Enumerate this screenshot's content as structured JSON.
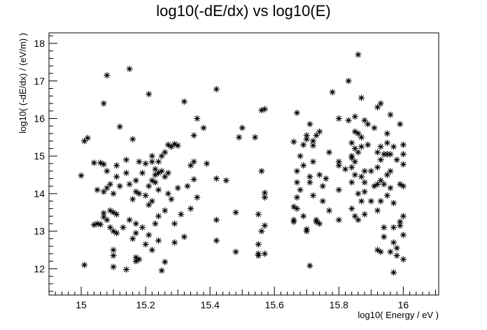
{
  "chart_data": {
    "type": "scatter",
    "title": "log10(-dE/dx) vs log10(E)",
    "xlabel": "log10( Energy / eV )",
    "ylabel": "log10( (-dE/dx) / (eV/m) )",
    "xlim": [
      14.9,
      16.11
    ],
    "ylim": [
      11.3,
      18.28
    ],
    "x_ticks": [
      15,
      15.2,
      15.4,
      15.6,
      15.8,
      16
    ],
    "x_tick_labels": [
      "15",
      "15.2",
      "15.4",
      "15.6",
      "15.8",
      "16"
    ],
    "y_ticks": [
      12,
      13,
      14,
      15,
      16,
      17,
      18
    ],
    "y_tick_labels": [
      "12",
      "13",
      "14",
      "15",
      "16",
      "17",
      "18"
    ],
    "grid": false,
    "marker": "star",
    "color": "#000000",
    "points": [
      [
        15.0,
        14.48
      ],
      [
        15.01,
        12.1
      ],
      [
        15.01,
        15.4
      ],
      [
        15.02,
        15.48
      ],
      [
        15.04,
        14.82
      ],
      [
        15.04,
        13.17
      ],
      [
        15.05,
        13.2
      ],
      [
        15.05,
        14.1
      ],
      [
        15.06,
        14.82
      ],
      [
        15.06,
        13.18
      ],
      [
        15.07,
        14.78
      ],
      [
        15.07,
        14.05
      ],
      [
        15.07,
        13.48
      ],
      [
        15.07,
        13.38
      ],
      [
        15.07,
        16.4
      ],
      [
        15.08,
        17.15
      ],
      [
        15.08,
        14.15
      ],
      [
        15.08,
        14.6
      ],
      [
        15.08,
        13.3
      ],
      [
        15.09,
        13.1
      ],
      [
        15.09,
        14.25
      ],
      [
        15.09,
        13.55
      ],
      [
        15.1,
        12.35
      ],
      [
        15.1,
        12.05
      ],
      [
        15.1,
        13.5
      ],
      [
        15.1,
        14.0
      ],
      [
        15.1,
        13.0
      ],
      [
        15.1,
        12.5
      ],
      [
        15.11,
        14.75
      ],
      [
        15.11,
        14.45
      ],
      [
        15.11,
        13.45
      ],
      [
        15.11,
        12.95
      ],
      [
        15.12,
        15.78
      ],
      [
        15.12,
        14.2
      ],
      [
        15.13,
        13.1
      ],
      [
        15.14,
        11.98
      ],
      [
        15.14,
        14.55
      ],
      [
        15.14,
        14.9
      ],
      [
        15.15,
        17.32
      ],
      [
        15.15,
        13.3
      ],
      [
        15.15,
        14.25
      ],
      [
        15.16,
        13.85
      ],
      [
        15.16,
        12.8
      ],
      [
        15.16,
        15.45
      ],
      [
        15.17,
        12.95
      ],
      [
        15.17,
        12.2
      ],
      [
        15.17,
        12.3
      ],
      [
        15.17,
        14.05
      ],
      [
        15.17,
        13.2
      ],
      [
        15.17,
        14.35
      ],
      [
        15.18,
        12.25
      ],
      [
        15.18,
        14.0
      ],
      [
        15.18,
        14.85
      ],
      [
        15.19,
        13.1
      ],
      [
        15.19,
        14.55
      ],
      [
        15.2,
        12.65
      ],
      [
        15.2,
        13.95
      ],
      [
        15.2,
        14.8
      ],
      [
        15.21,
        16.65
      ],
      [
        15.21,
        14.2
      ],
      [
        15.21,
        13.7
      ],
      [
        15.21,
        12.9
      ],
      [
        15.22,
        14.85
      ],
      [
        15.22,
        14.35
      ],
      [
        15.22,
        12.5
      ],
      [
        15.22,
        15.0
      ],
      [
        15.22,
        13.8
      ],
      [
        15.23,
        14.3
      ],
      [
        15.23,
        14.65
      ],
      [
        15.23,
        13.2
      ],
      [
        15.23,
        14.5
      ],
      [
        15.24,
        14.55
      ],
      [
        15.24,
        14.1
      ],
      [
        15.24,
        13.4
      ],
      [
        15.24,
        14.85
      ],
      [
        15.24,
        12.75
      ],
      [
        15.25,
        14.6
      ],
      [
        15.25,
        15.0
      ],
      [
        15.25,
        11.95
      ],
      [
        15.26,
        14.45
      ],
      [
        15.26,
        15.1
      ],
      [
        15.26,
        12.18
      ],
      [
        15.26,
        13.55
      ],
      [
        15.27,
        15.3
      ],
      [
        15.27,
        14.0
      ],
      [
        15.27,
        14.55
      ],
      [
        15.28,
        15.25
      ],
      [
        15.28,
        13.85
      ],
      [
        15.29,
        15.32
      ],
      [
        15.29,
        13.2
      ],
      [
        15.29,
        12.7
      ],
      [
        15.3,
        14.15
      ],
      [
        15.3,
        15.28
      ],
      [
        15.31,
        13.45
      ],
      [
        15.32,
        12.85
      ],
      [
        15.32,
        16.45
      ],
      [
        15.33,
        14.2
      ],
      [
        15.34,
        13.6
      ],
      [
        15.34,
        14.75
      ],
      [
        15.35,
        14.38
      ],
      [
        15.35,
        15.55
      ],
      [
        15.35,
        14.85
      ],
      [
        15.36,
        16.0
      ],
      [
        15.36,
        13.9
      ],
      [
        15.38,
        15.75
      ],
      [
        15.39,
        14.8
      ],
      [
        15.42,
        16.78
      ],
      [
        15.42,
        14.4
      ],
      [
        15.42,
        13.3
      ],
      [
        15.42,
        12.75
      ],
      [
        15.45,
        14.35
      ],
      [
        15.48,
        13.5
      ],
      [
        15.48,
        12.45
      ],
      [
        15.49,
        15.5
      ],
      [
        15.5,
        15.75
      ],
      [
        15.54,
        15.5
      ],
      [
        15.55,
        13.45
      ],
      [
        15.55,
        12.65
      ],
      [
        15.55,
        12.4
      ],
      [
        15.55,
        12.35
      ],
      [
        15.56,
        14.6
      ],
      [
        15.56,
        13.0
      ],
      [
        15.56,
        16.22
      ],
      [
        15.57,
        16.25
      ],
      [
        15.57,
        14.02
      ],
      [
        15.57,
        13.15
      ],
      [
        15.57,
        12.4
      ],
      [
        15.57,
        13.9
      ],
      [
        15.66,
        15.38
      ],
      [
        15.66,
        13.65
      ],
      [
        15.66,
        13.3
      ],
      [
        15.66,
        13.25
      ],
      [
        15.67,
        16.15
      ],
      [
        15.67,
        14.6
      ],
      [
        15.67,
        13.9
      ],
      [
        15.67,
        14.3
      ],
      [
        15.67,
        13.6
      ],
      [
        15.68,
        14.1
      ],
      [
        15.68,
        15.0
      ],
      [
        15.69,
        15.3
      ],
      [
        15.69,
        13.4
      ],
      [
        15.69,
        14.75
      ],
      [
        15.7,
        15.55
      ],
      [
        15.7,
        13.05
      ],
      [
        15.7,
        13.0
      ],
      [
        15.7,
        15.45
      ],
      [
        15.71,
        12.08
      ],
      [
        15.71,
        15.85
      ],
      [
        15.71,
        14.45
      ],
      [
        15.71,
        14.3
      ],
      [
        15.72,
        15.28
      ],
      [
        15.72,
        14.85
      ],
      [
        15.72,
        13.95
      ],
      [
        15.72,
        15.4
      ],
      [
        15.73,
        15.55
      ],
      [
        15.73,
        13.25
      ],
      [
        15.73,
        13.3
      ],
      [
        15.74,
        15.65
      ],
      [
        15.74,
        14.5
      ],
      [
        15.74,
        13.2
      ],
      [
        15.75,
        14.2
      ],
      [
        15.75,
        13.8
      ],
      [
        15.76,
        14.4
      ],
      [
        15.77,
        13.55
      ],
      [
        15.77,
        15.1
      ],
      [
        15.78,
        16.7
      ],
      [
        15.8,
        16.0
      ],
      [
        15.8,
        14.85
      ],
      [
        15.8,
        14.75
      ],
      [
        15.8,
        14.1
      ],
      [
        15.8,
        13.3
      ],
      [
        15.82,
        14.65
      ],
      [
        15.83,
        17.0
      ],
      [
        15.83,
        15.95
      ],
      [
        15.84,
        15.35
      ],
      [
        15.84,
        15.0
      ],
      [
        15.84,
        14.95
      ],
      [
        15.84,
        14.7
      ],
      [
        15.84,
        14.3
      ],
      [
        15.84,
        13.6
      ],
      [
        15.85,
        16.05
      ],
      [
        15.85,
        15.65
      ],
      [
        15.85,
        15.2
      ],
      [
        15.85,
        14.5
      ],
      [
        15.85,
        14.85
      ],
      [
        15.85,
        13.4
      ],
      [
        15.86,
        17.7
      ],
      [
        15.86,
        15.6
      ],
      [
        15.86,
        15.1
      ],
      [
        15.86,
        14.0
      ],
      [
        15.86,
        13.3
      ],
      [
        15.87,
        16.55
      ],
      [
        15.87,
        15.5
      ],
      [
        15.87,
        15.25
      ],
      [
        15.87,
        14.45
      ],
      [
        15.87,
        13.8
      ],
      [
        15.88,
        15.95
      ],
      [
        15.88,
        14.6
      ],
      [
        15.88,
        14.3
      ],
      [
        15.88,
        14.05
      ],
      [
        15.88,
        13.45
      ],
      [
        15.89,
        15.85
      ],
      [
        15.89,
        15.3
      ],
      [
        15.9,
        14.6
      ],
      [
        15.9,
        13.8
      ],
      [
        15.91,
        15.75
      ],
      [
        15.91,
        14.2
      ],
      [
        15.92,
        16.3
      ],
      [
        15.92,
        15.1
      ],
      [
        15.92,
        14.7
      ],
      [
        15.92,
        14.25
      ],
      [
        15.92,
        13.55
      ],
      [
        15.92,
        12.5
      ],
      [
        15.93,
        16.4
      ],
      [
        15.93,
        15.25
      ],
      [
        15.93,
        14.9
      ],
      [
        15.93,
        14.35
      ],
      [
        15.93,
        13.8
      ],
      [
        15.93,
        12.45
      ],
      [
        15.94,
        15.05
      ],
      [
        15.94,
        14.25
      ],
      [
        15.94,
        13.1
      ],
      [
        15.94,
        12.85
      ],
      [
        15.95,
        15.6
      ],
      [
        15.95,
        15.35
      ],
      [
        15.95,
        15.05
      ],
      [
        15.95,
        14.5
      ],
      [
        15.95,
        13.95
      ],
      [
        15.96,
        14.6
      ],
      [
        15.96,
        12.45
      ],
      [
        15.96,
        16.1
      ],
      [
        15.96,
        15.05
      ],
      [
        15.96,
        14.15
      ],
      [
        15.97,
        13.1
      ],
      [
        15.97,
        12.7
      ],
      [
        15.97,
        11.9
      ],
      [
        15.97,
        13.75
      ],
      [
        15.97,
        15.25
      ],
      [
        15.98,
        12.55
      ],
      [
        15.98,
        12.35
      ],
      [
        15.98,
        14.9
      ],
      [
        15.99,
        15.85
      ],
      [
        15.99,
        14.25
      ],
      [
        15.99,
        13.25
      ],
      [
        15.99,
        13.15
      ],
      [
        16.0,
        15.3
      ],
      [
        16.0,
        15.05
      ],
      [
        16.0,
        14.78
      ],
      [
        16.0,
        14.2
      ],
      [
        16.0,
        13.4
      ],
      [
        16.0,
        12.9
      ],
      [
        16.0,
        12.25
      ]
    ]
  }
}
